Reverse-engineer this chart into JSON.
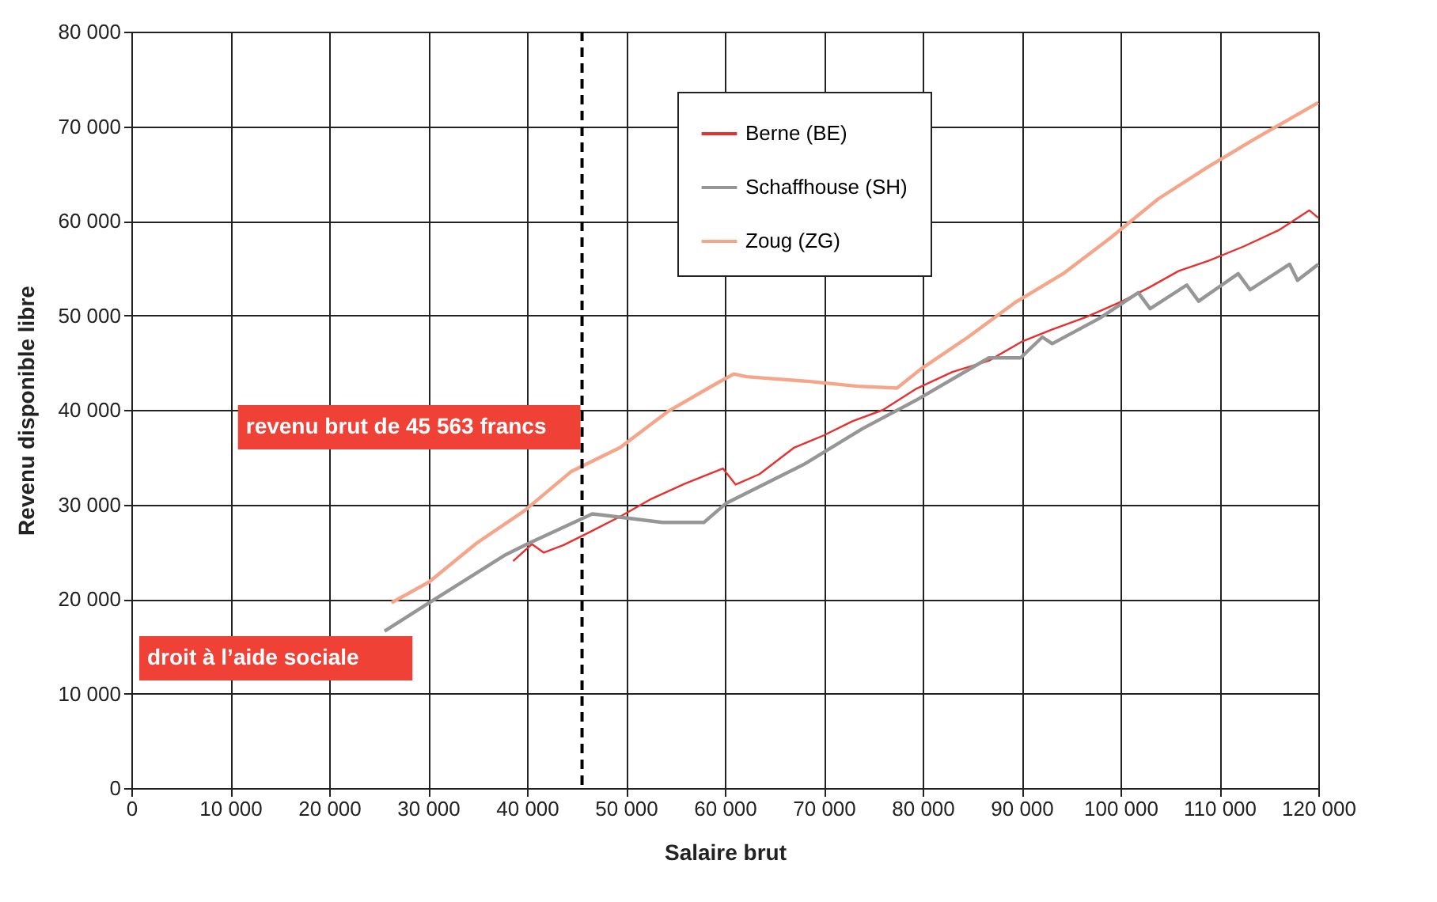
{
  "chart_data": {
    "type": "line",
    "xlabel": "Salaire brut",
    "ylabel": "Revenu disponible libre",
    "xlim": [
      0,
      120000
    ],
    "ylim": [
      0,
      80000
    ],
    "xticks": [
      0,
      {
        "value": 10000,
        "label": "10 000"
      },
      {
        "value": 20000,
        "label": "20 000"
      },
      {
        "value": 30000,
        "label": "30 000"
      },
      {
        "value": 40000,
        "label": "40 000"
      },
      {
        "value": 50000,
        "label": "50 000"
      },
      {
        "value": 60000,
        "label": "60 000"
      },
      {
        "value": 70000,
        "label": "70 000"
      },
      {
        "value": 80000,
        "label": "80 000"
      },
      {
        "value": 90000,
        "label": "90 000"
      },
      {
        "value": 100000,
        "label": "100 000"
      },
      {
        "value": 110000,
        "label": "110 000"
      },
      {
        "value": 120000,
        "label": "120 000"
      }
    ],
    "yticks": [
      0,
      {
        "value": 10000,
        "label": "10 000"
      },
      {
        "value": 20000,
        "label": "20 000"
      },
      {
        "value": 30000,
        "label": "30 000"
      },
      {
        "value": 40000,
        "label": "40 000"
      },
      {
        "value": 50000,
        "label": "50 000"
      },
      {
        "value": 60000,
        "label": "60 000"
      },
      {
        "value": 70000,
        "label": "70 000"
      },
      {
        "value": 80000,
        "label": "80 000"
      }
    ],
    "grid": true,
    "legend": "top",
    "line_style": "solid",
    "series": [
      {
        "name": "Berne (BE)",
        "color": "#e8312f",
        "x": [
          38600,
          40500,
          41700,
          43700,
          46200,
          49400,
          52600,
          56000,
          59800,
          61100,
          63500,
          67000,
          70000,
          72900,
          76000,
          79300,
          83000,
          86700,
          90000,
          93100,
          96500,
          100200,
          103000,
          105900,
          109000,
          112500,
          116000,
          119100,
          120000
        ],
        "values": [
          24000,
          25800,
          24900,
          25700,
          27000,
          28700,
          30600,
          32200,
          33800,
          32100,
          33200,
          36000,
          37300,
          38800,
          40000,
          42200,
          44000,
          45200,
          47200,
          48500,
          49800,
          51500,
          53000,
          54700,
          55800,
          57300,
          59000,
          61100,
          60300
        ]
      },
      {
        "name": "Schaffhouse (SH)",
        "color": "#969696",
        "x": [
          25600,
          30100,
          37700,
          40200,
          46600,
          53700,
          57900,
          60100,
          64300,
          68100,
          73900,
          79300,
          86700,
          89900,
          92100,
          93100,
          97900,
          101800,
          103000,
          106700,
          107900,
          111900,
          113100,
          117100,
          117900,
          120000
        ],
        "values": [
          16600,
          19600,
          24600,
          25900,
          29000,
          28100,
          28100,
          30100,
          32300,
          34300,
          38000,
          41000,
          45500,
          45500,
          47700,
          47000,
          49700,
          52400,
          50700,
          53200,
          51500,
          54400,
          52700,
          55400,
          53700,
          55400
        ]
      },
      {
        "name": "Zoug (ZG)",
        "color": "#f4a58a",
        "x": [
          26300,
          30100,
          34900,
          39700,
          44500,
          49400,
          54200,
          59000,
          60900,
          62200,
          68600,
          73400,
          77400,
          79800,
          84600,
          89400,
          94200,
          99000,
          103800,
          108700,
          113500,
          120000
        ],
        "values": [
          19600,
          21800,
          25900,
          29300,
          33500,
          36000,
          39800,
          42700,
          43800,
          43500,
          43000,
          42500,
          42300,
          44300,
          47700,
          51400,
          54400,
          58200,
          62300,
          65600,
          68600,
          72500
        ]
      }
    ],
    "ref_lines": [
      {
        "axis": "x",
        "value": 45563,
        "label": "revenu brut de 45 563 francs",
        "color": "#000000",
        "line_style": "dashed"
      }
    ],
    "annotations": [
      "droit à l’aide sociale"
    ]
  }
}
